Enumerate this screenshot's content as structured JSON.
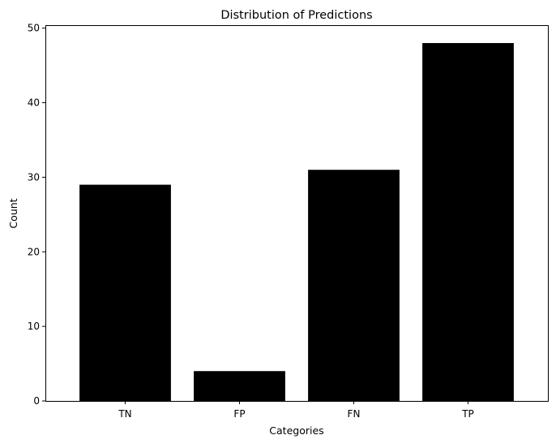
{
  "chart_data": {
    "type": "bar",
    "title": "Distribution of Predictions",
    "xlabel": "Categories",
    "ylabel": "Count",
    "categories": [
      "TN",
      "FP",
      "FN",
      "TP"
    ],
    "values": [
      29,
      4,
      31,
      48
    ],
    "ylim": [
      0,
      50.4
    ],
    "yticks": [
      0,
      10,
      20,
      30,
      40,
      50
    ],
    "bar_color": "#000000",
    "grid": false,
    "legend": "none"
  }
}
